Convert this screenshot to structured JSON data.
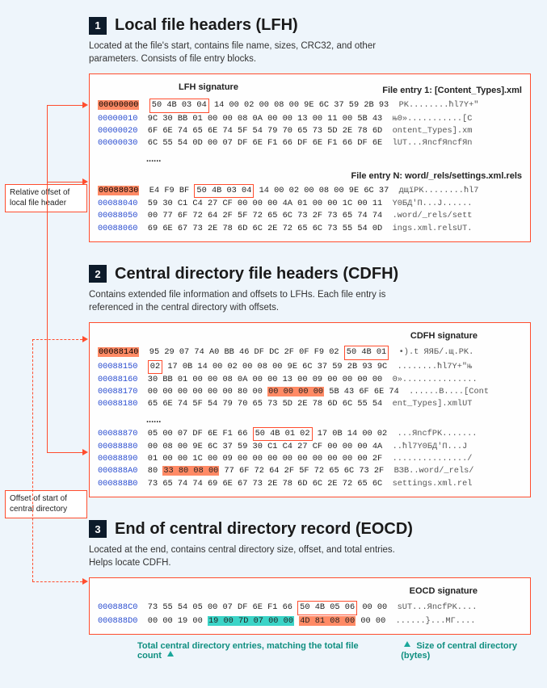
{
  "colors": {
    "page_bg": "#eef5fb",
    "panel_border": "#ff4d2e",
    "highlight_orange": "#ff8a65",
    "highlight_teal": "#3bd4c7",
    "offset_text": "#2a4dd0",
    "badge_bg": "#0d1b2a",
    "teal_label": "#0f8f80"
  },
  "side_labels": {
    "lfh_offset": "Relative offset of local file header",
    "cd_offset": "Offset of start of central directory"
  },
  "sections": [
    {
      "num": "1",
      "title": "Local file headers (LFH)",
      "desc": "Located at the file's start, contains file name, sizes, CRC32, and other parameters. Consists of file entry blocks.",
      "sig_label": "LFH signature",
      "entry1_label": "File entry 1: [Content_Types].xml",
      "entryN_label": "File entry N: word/_rels/settings.xml.rels",
      "rows1": [
        {
          "off": "00000000",
          "off_hl": true,
          "hex_pre": "",
          "sig": "50 4B 03 04",
          "hex_post": " 14 00 02 00 08 00 9E 6C 37 59 2B 93",
          "asc": "PK........ћl7Y+\""
        },
        {
          "off": "00000010",
          "hex": "9C 30 BB 01 00 00 08 0A 00 00 13 00 11 00 5B 43",
          "asc": "њ0»...........[C"
        },
        {
          "off": "00000020",
          "hex": "6F 6E 74 65 6E 74 5F 54 79 70 65 73 5D 2E 78 6D",
          "asc": "ontent_Types].xm"
        },
        {
          "off": "00000030",
          "hex": "6C 55 54 0D 00 07 DF 6E F1 66 DF 6E F1 66 DF 6E",
          "asc": "lUT...ЯncfЯncfЯn"
        }
      ],
      "rowsN": [
        {
          "off": "00088030",
          "off_hl": true,
          "hex_pre": "E4 F9 BF ",
          "sig": "50 4B 03 04",
          "hex_post": " 14 00 02 00 08 00 9E 6C 37",
          "asc": "дщїPK........ћl7"
        },
        {
          "off": "00088040",
          "hex": "59 30 C1 C4 27 CF 00 00 00 4A 01 00 00 1C 00 11",
          "asc": "Y0БД'П...J......"
        },
        {
          "off": "00088050",
          "hex": "00 77 6F 72 64 2F 5F 72 65 6C 73 2F 73 65 74 74",
          "asc": ".word/_rels/sett"
        },
        {
          "off": "00088060",
          "hex": "69 6E 67 73 2E 78 6D 6C 2E 72 65 6C 73 55 54 0D",
          "asc": "ings.xml.relsUT."
        }
      ]
    },
    {
      "num": "2",
      "title": "Central directory file headers (CDFH)",
      "desc": "Contains extended file information and offsets to LFHs. Each file entry is referenced in the central directory with offsets.",
      "sig_label": "CDFH signature",
      "rows1": [
        {
          "off": "00088140",
          "off_hl": true,
          "hex_pre": "95 29 07 74 A0 BB 46 DF DC 2F 0F F9 02 ",
          "sig": "50 4B 01",
          "asc": "•).t ЯЯБ/.щ.PK."
        },
        {
          "off": "00088150",
          "hex_pre": "",
          "sig": "02",
          "hex_post": " 17 0B 14 00 02 00 08 00 9E 6C 37 59 2B 93 9C",
          "asc": "........ћl7Y+\"њ"
        },
        {
          "off": "00088160",
          "hex": "30 BB 01 00 00 08 0A 00 00 13 00 09 00 00 00 00",
          "asc": "0»..............."
        },
        {
          "off": "00088170",
          "hex_pre": "00 00 00 00 00 00 80 00 ",
          "hl": "00 00 00 00",
          "hex_post": " 5B 43 6F 6E 74",
          "asc": "......В....[Cont"
        },
        {
          "off": "00088180",
          "hex": "65 6E 74 5F 54 79 70 65 73 5D 2E 78 6D 6C 55 54",
          "asc": "ent_Types].xmlUT"
        }
      ],
      "rowsN": [
        {
          "off": "00088870",
          "hex_pre": "05 00 07 DF 6E F1 66 ",
          "sig": "50 4B 01 02",
          "hex_post": " 17 0B 14 00 02",
          "asc": "...ЯncfPK......."
        },
        {
          "off": "00088880",
          "hex": "00 08 00 9E 6C 37 59 30 C1 C4 27 CF 00 00 00 4A",
          "asc": "..ћl7Y0БД'П...J"
        },
        {
          "off": "00088890",
          "hex": "01 00 00 1C 00 09 00 00 00 00 00 00 00 00 00 2F",
          "asc": ".............../"
        },
        {
          "off": "000888A0",
          "hex_pre": "80 ",
          "hl": "33 80 08 00",
          "hex_post": " 77 6F 72 64 2F 5F 72 65 6C 73 2F",
          "asc": "ВЗВ..word/_rels/"
        },
        {
          "off": "000888B0",
          "hex": "73 65 74 74 69 6E 67 73 2E 78 6D 6C 2E 72 65 6C",
          "asc": "settings.xml.rel"
        }
      ]
    },
    {
      "num": "3",
      "title": "End of central directory record (EOCD)",
      "desc": "Located at the end, contains central directory size, offset, and total entries. Helps locate CDFH.",
      "sig_label": "EOCD signature",
      "rows": [
        {
          "off": "000888C0",
          "hex_pre": "73 55 54 05 00 07 DF 6E F1 66 ",
          "sig": "50 4B 05 06",
          "hex_post": " 00 00",
          "asc": "sUT...ЯncfPK...."
        },
        {
          "off": "000888D0",
          "hex_pre": "00 00 19 00 ",
          "teal": "19 00 7D 07 00 00",
          "mid": " ",
          "hl": "4D 81 08 00",
          "hex_post": " 00 00",
          "asc": "......}...MГ...."
        }
      ],
      "callout_teal": "Total central directory entries, matching the total file count",
      "callout_size": "Size of central directory (bytes)"
    }
  ]
}
